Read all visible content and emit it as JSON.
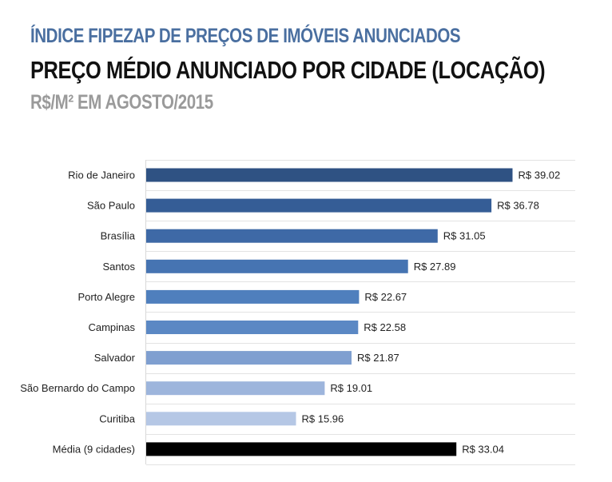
{
  "header": {
    "line1": "ÍNDICE FIPEZAP DE PREÇOS DE IMÓVEIS ANUNCIADOS",
    "line2": "PREÇO MÉDIO ANUNCIADO POR CIDADE (LOCAÇÃO)",
    "line3": "R$/M² EM AGOSTO/2015"
  },
  "chart_data": {
    "type": "bar",
    "orientation": "horizontal",
    "title": "PREÇO MÉDIO ANUNCIADO POR CIDADE (LOCAÇÃO)",
    "subtitle": "R$/M² EM AGOSTO/2015",
    "xlabel": "",
    "ylabel": "",
    "xlim": [
      0,
      45
    ],
    "grid": true,
    "value_prefix": "R$ ",
    "categories": [
      "Rio de Janeiro",
      "São Paulo",
      "Brasília",
      "Santos",
      "Porto Alegre",
      "Campinas",
      "Salvador",
      "São Bernardo do Campo",
      "Curitiba",
      "Média (9 cidades)"
    ],
    "values": [
      39.02,
      36.78,
      31.05,
      27.89,
      22.67,
      22.58,
      21.87,
      19.01,
      15.96,
      33.04
    ],
    "value_labels": [
      "R$ 39.02",
      "R$ 36.78",
      "R$ 31.05",
      "R$ 27.89",
      "R$ 22.67",
      "R$ 22.58",
      "R$ 21.87",
      "R$ 19.01",
      "R$ 15.96",
      "R$ 33.04"
    ],
    "colors": [
      "#2f5283",
      "#355d96",
      "#3e69a6",
      "#4674b2",
      "#4f7fbd",
      "#5b88c4",
      "#7f9fd0",
      "#9db5dc",
      "#b5c7e5",
      "#000000"
    ]
  }
}
